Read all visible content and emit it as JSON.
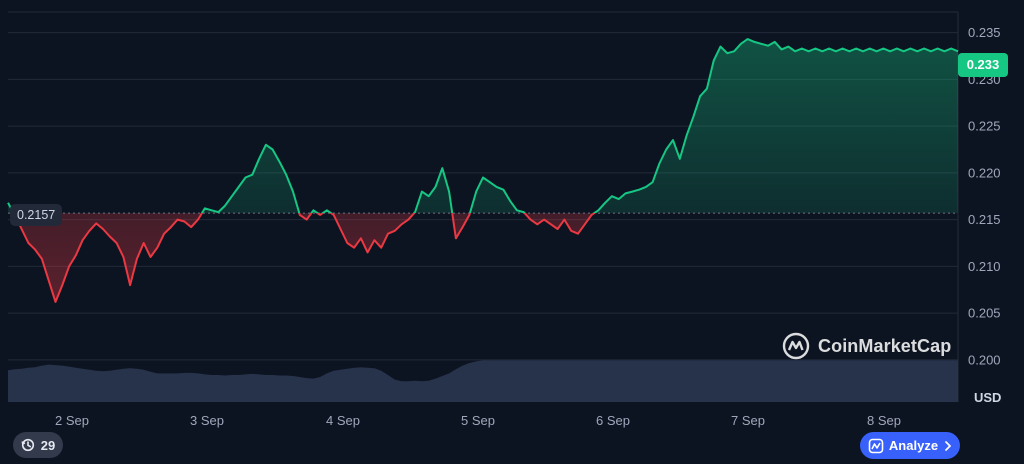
{
  "chart_data": {
    "type": "line",
    "currency": "USD",
    "current_price": "0.233",
    "baseline_label": "0.2157",
    "baseline": 0.2157,
    "ylim": [
      0.1955,
      0.2372
    ],
    "y_ticks": [
      "0.235",
      "0.230",
      "0.225",
      "0.220",
      "0.215",
      "0.210",
      "0.205",
      "0.200"
    ],
    "x_ticks": [
      "2 Sep",
      "3 Sep",
      "4 Sep",
      "5 Sep",
      "6 Sep",
      "7 Sep",
      "8 Sep"
    ],
    "series": [
      {
        "x": [
          1.0,
          1.1,
          1.2,
          1.3,
          1.4,
          1.5,
          1.6,
          1.7,
          1.8,
          1.9,
          2.0,
          2.1,
          2.2,
          2.3,
          2.4,
          2.5,
          2.6,
          2.7,
          2.8,
          2.9,
          3.0,
          3.1,
          3.2,
          3.3,
          3.4,
          3.5,
          3.6,
          3.7,
          3.8,
          3.9,
          4.0,
          4.1,
          4.2,
          4.3,
          4.4,
          4.5,
          4.6,
          4.7,
          4.8,
          4.9,
          5.0,
          5.1,
          5.2,
          5.3,
          5.4,
          5.5,
          5.6,
          5.7,
          5.8,
          5.9,
          6.0,
          6.1,
          6.2,
          6.3,
          6.4,
          6.5,
          6.6,
          6.7,
          6.8,
          6.9,
          7.0,
          7.1,
          7.2,
          7.3,
          7.4,
          7.5,
          7.6,
          7.7,
          7.8,
          7.9,
          8.0,
          8.1,
          8.2,
          8.3,
          8.4,
          8.5,
          8.6,
          8.7,
          8.8,
          8.9,
          9.0,
          9.1,
          9.2,
          9.3,
          9.4,
          9.5,
          9.6,
          9.7,
          9.8,
          9.9,
          10.0,
          10.1,
          10.2,
          10.3,
          10.4,
          10.5,
          10.6,
          10.7,
          10.8,
          10.9,
          11.0,
          11.1,
          11.2,
          11.3,
          11.4,
          11.5,
          11.6,
          11.7,
          11.8,
          11.9,
          12.0,
          12.1,
          12.2,
          12.3,
          12.4,
          12.5,
          12.6,
          12.7,
          12.8,
          12.9,
          13.0,
          13.1,
          13.2,
          13.3,
          13.4,
          13.5,
          13.6,
          13.7,
          13.8,
          13.9,
          14.0,
          14.1,
          14.2,
          14.3,
          14.4,
          14.5,
          14.6,
          14.7,
          14.8,
          14.9,
          15.0
        ],
        "values": [
          0.2168,
          0.2155,
          0.214,
          0.2125,
          0.2118,
          0.2108,
          0.2085,
          0.2062,
          0.208,
          0.21,
          0.2112,
          0.2128,
          0.2138,
          0.2146,
          0.214,
          0.2132,
          0.2125,
          0.211,
          0.208,
          0.2108,
          0.2125,
          0.211,
          0.212,
          0.2135,
          0.2142,
          0.215,
          0.2148,
          0.2142,
          0.215,
          0.2162,
          0.216,
          0.2158,
          0.2165,
          0.2175,
          0.2185,
          0.2195,
          0.2198,
          0.2215,
          0.223,
          0.2225,
          0.2212,
          0.2198,
          0.218,
          0.2155,
          0.215,
          0.216,
          0.2155,
          0.216,
          0.2155,
          0.214,
          0.2125,
          0.212,
          0.213,
          0.2115,
          0.2128,
          0.212,
          0.2135,
          0.2138,
          0.2145,
          0.215,
          0.2158,
          0.218,
          0.2175,
          0.2185,
          0.2205,
          0.218,
          0.213,
          0.2142,
          0.2155,
          0.218,
          0.2195,
          0.219,
          0.2185,
          0.2182,
          0.217,
          0.216,
          0.2158,
          0.215,
          0.2145,
          0.215,
          0.2145,
          0.214,
          0.215,
          0.2138,
          0.2135,
          0.2145,
          0.2155,
          0.216,
          0.2168,
          0.2175,
          0.2172,
          0.2178,
          0.218,
          0.2182,
          0.2185,
          0.219,
          0.221,
          0.2225,
          0.2235,
          0.2215,
          0.224,
          0.226,
          0.2282,
          0.229,
          0.232,
          0.2335,
          0.2328,
          0.233,
          0.2338,
          0.2343,
          0.234,
          0.2338,
          0.2336,
          0.234,
          0.2332,
          0.2335,
          0.233,
          0.2333,
          0.233,
          0.2333,
          0.233,
          0.2333,
          0.233,
          0.2333,
          0.233,
          0.2333,
          0.233,
          0.2333,
          0.233,
          0.2333,
          0.233,
          0.2333,
          0.233,
          0.2333,
          0.233,
          0.2333,
          0.233,
          0.2333,
          0.233,
          0.2333,
          0.233
        ],
        "volume": [
          0.61,
          0.63,
          0.64,
          0.66,
          0.67,
          0.7,
          0.72,
          0.71,
          0.7,
          0.68,
          0.66,
          0.64,
          0.62,
          0.6,
          0.59,
          0.6,
          0.62,
          0.64,
          0.65,
          0.64,
          0.62,
          0.58,
          0.55,
          0.55,
          0.55,
          0.55,
          0.56,
          0.56,
          0.55,
          0.53,
          0.52,
          0.52,
          0.51,
          0.52,
          0.52,
          0.53,
          0.54,
          0.53,
          0.52,
          0.52,
          0.51,
          0.51,
          0.5,
          0.48,
          0.46,
          0.45,
          0.48,
          0.55,
          0.6,
          0.62,
          0.64,
          0.66,
          0.67,
          0.66,
          0.65,
          0.6,
          0.52,
          0.43,
          0.4,
          0.4,
          0.41,
          0.4,
          0.41,
          0.45,
          0.5,
          0.55,
          0.63,
          0.7,
          0.75,
          0.78,
          0.8,
          0.8,
          0.8,
          0.8,
          0.8,
          0.8,
          0.8,
          0.8,
          0.8,
          0.8,
          0.8,
          0.8,
          0.8,
          0.8,
          0.8,
          0.8,
          0.8,
          0.8,
          0.8,
          0.8,
          0.8,
          0.8,
          0.8,
          0.8,
          0.8,
          0.8,
          0.8,
          0.8,
          0.8,
          0.8,
          0.8,
          0.8,
          0.8,
          0.8,
          0.8,
          0.8,
          0.8,
          0.8,
          0.8,
          0.8,
          0.8,
          0.8,
          0.8,
          0.8,
          0.8,
          0.8,
          0.8,
          0.8,
          0.8,
          0.8,
          0.8,
          0.8,
          0.8,
          0.8,
          0.8,
          0.8,
          0.8,
          0.8,
          0.8,
          0.8,
          0.8,
          0.8,
          0.8,
          0.8,
          0.8,
          0.8,
          0.8,
          0.8,
          0.8,
          0.8,
          0.8
        ]
      }
    ],
    "colors": {
      "up": "#16c784",
      "down": "#ea3943",
      "volume": "#2a3550",
      "grid": "#222a39"
    }
  },
  "watermark": "CoinMarketCap",
  "controls": {
    "history_count": "29",
    "analyze_label": "Analyze",
    "history_icon": "history-clock-icon",
    "analyze_icon": "analyze-chart-icon"
  }
}
